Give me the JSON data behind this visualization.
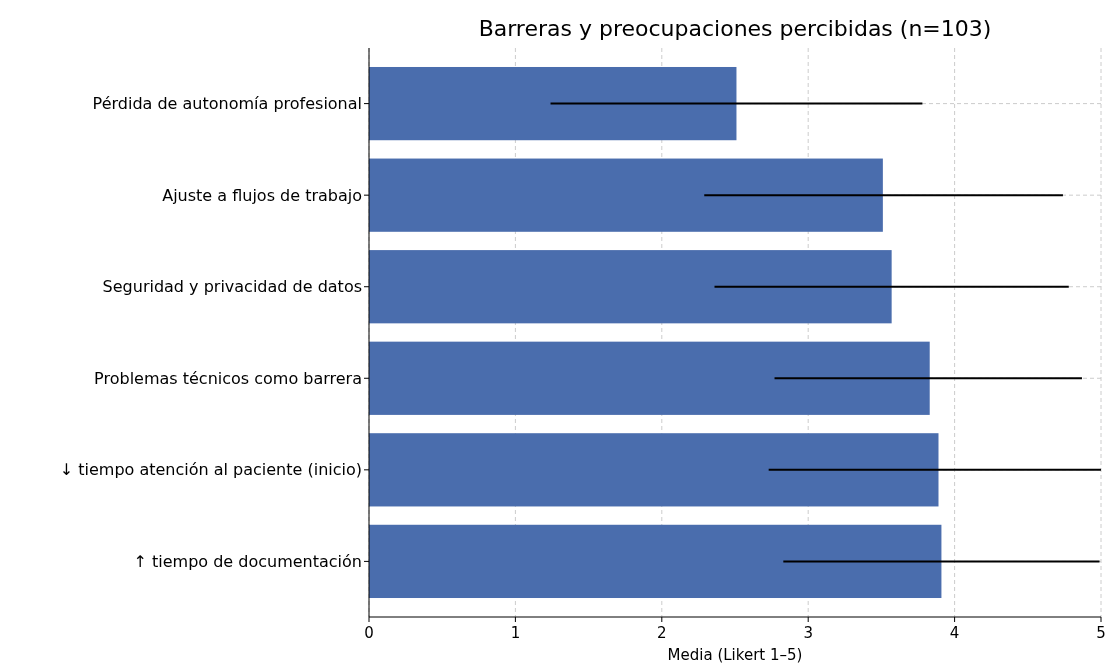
{
  "chart_data": {
    "type": "bar",
    "orientation": "horizontal",
    "title": "Barreras y preocupaciones percibidas (n=103)",
    "xlabel": "Media (Likert 1–5)",
    "categories": [
      "Pérdida de autonomía profesional",
      "Ajuste a flujos de trabajo",
      "Seguridad y privacidad de datos",
      "Problemas técnicos como barrera",
      "↓ tiempo atención al paciente (inicio)",
      "↑ tiempo de documentación"
    ],
    "values": [
      2.51,
      3.51,
      3.57,
      3.83,
      3.89,
      3.91
    ],
    "errors": [
      [
        1.24,
        3.78
      ],
      [
        2.29,
        4.74
      ],
      [
        2.36,
        4.78
      ],
      [
        2.77,
        4.87
      ],
      [
        2.73,
        5
      ],
      [
        2.83,
        4.99
      ]
    ],
    "color": "#4a6dad",
    "xlim": [
      0,
      5
    ],
    "xticks": [
      0,
      1,
      2,
      3,
      4,
      5
    ],
    "grid": true
  }
}
